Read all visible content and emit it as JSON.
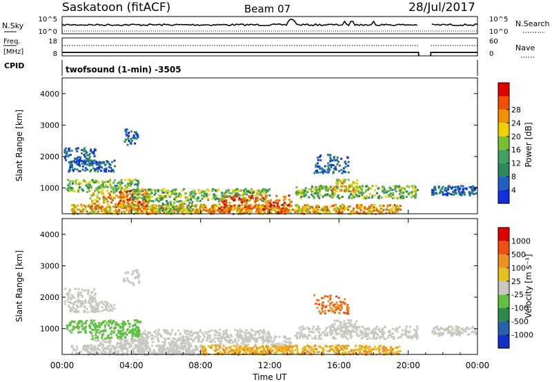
{
  "header": {
    "station": "Saskatoon (fitACF)",
    "beam": "Beam 07",
    "date": "28/Jul/2017"
  },
  "noise_panel": {
    "left_label": "N.Sky",
    "right_label": "N.Search",
    "left_ticks": [
      "10^5",
      "10^0"
    ],
    "right_ticks": [
      "10^5",
      "10^0"
    ]
  },
  "freq_panel": {
    "left_label_line1": "Freq.",
    "left_label_line2": "[MHz]",
    "right_label": "Nave",
    "left_ticks": [
      "18",
      "8"
    ],
    "right_ticks": [
      "60",
      "0"
    ]
  },
  "cpid": {
    "label": "CPID",
    "text": "twofsound (1-min) -3505"
  },
  "colors": {
    "power": [
      "#1030e0",
      "#2060c0",
      "#2a8a5a",
      "#40a060",
      "#78c030",
      "#f0d000",
      "#f09000",
      "#f05000",
      "#e00000"
    ],
    "velocity": [
      "#1530c8",
      "#2a60b0",
      "#2a8a4a",
      "#60c040",
      "#c8c8c0",
      "#e8c020",
      "#f09020",
      "#f05010",
      "#e00000"
    ]
  },
  "chart_data": [
    {
      "type": "heatmap",
      "name": "power",
      "ylabel": "Slant Range [km]",
      "ylim": [
        180,
        4500
      ],
      "yticks": [
        "1000",
        "2000",
        "3000",
        "4000"
      ],
      "ytick_values": [
        1000,
        2000,
        3000,
        4000
      ],
      "xlim": [
        0,
        24
      ],
      "colorbar_label": "Power [dB]",
      "colorbar_ticks": [
        "4",
        "8",
        "12",
        "16",
        "20",
        "24",
        "28"
      ],
      "colorbar_values": [
        4,
        8,
        12,
        16,
        20,
        24,
        28
      ],
      "colorbar_range": [
        0,
        32
      ]
    },
    {
      "type": "heatmap",
      "name": "velocity",
      "ylabel": "Slant Range [km]",
      "ylim": [
        180,
        4500
      ],
      "yticks": [
        "1000",
        "2000",
        "3000",
        "4000"
      ],
      "ytick_values": [
        1000,
        2000,
        3000,
        4000
      ],
      "xlim": [
        0,
        24
      ],
      "xticks": [
        "00:00",
        "04:00",
        "08:00",
        "12:00",
        "16:00",
        "20:00",
        "00:00"
      ],
      "xtick_values": [
        0,
        4,
        8,
        12,
        16,
        20,
        24
      ],
      "xlabel": "Time UT",
      "colorbar_label": "Velocity [m s⁻¹]",
      "colorbar_ticks": [
        "1000",
        "500",
        "100",
        "25",
        "-25",
        "-100",
        "-500",
        "-1000"
      ]
    }
  ]
}
